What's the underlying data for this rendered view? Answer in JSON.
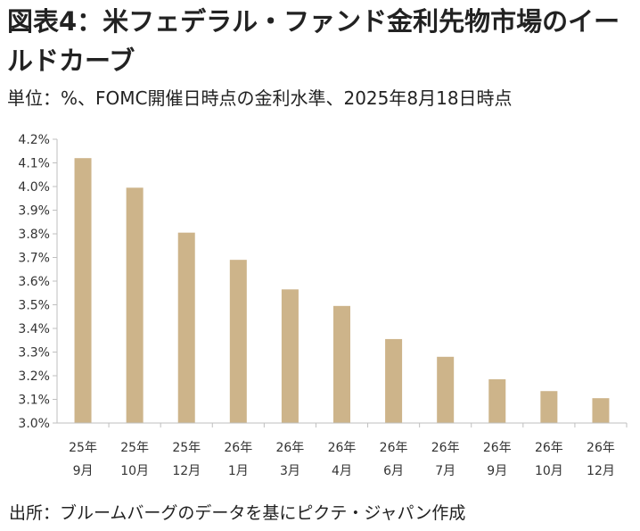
{
  "title": "図表4：米フェデラル・ファンド金利先物市場のイールドカーブ",
  "subtitle": "単位：%、FOMC開催日時点の金利水準、2025年8月18日時点",
  "source": "出所：ブルームバーグのデータを基にピクテ・ジャパン作成",
  "colors": {
    "bar": "#CDB48A",
    "axis": "#BFBFBF",
    "grid": "#D9D9D9"
  },
  "chart_data": {
    "type": "bar",
    "categories": [
      [
        "25年",
        "9月"
      ],
      [
        "25年",
        "10月"
      ],
      [
        "25年",
        "12月"
      ],
      [
        "26年",
        "1月"
      ],
      [
        "26年",
        "3月"
      ],
      [
        "26年",
        "4月"
      ],
      [
        "26年",
        "6月"
      ],
      [
        "26年",
        "7月"
      ],
      [
        "26年",
        "9月"
      ],
      [
        "26年",
        "10月"
      ],
      [
        "26年",
        "12月"
      ]
    ],
    "values": [
      4.12,
      3.995,
      3.805,
      3.69,
      3.565,
      3.495,
      3.355,
      3.28,
      3.185,
      3.135,
      3.105
    ],
    "ylim": [
      3.0,
      4.2
    ],
    "yticks": [
      "4.2%",
      "4.1%",
      "4.0%",
      "3.9%",
      "3.8%",
      "3.7%",
      "3.6%",
      "3.5%",
      "3.4%",
      "3.3%",
      "3.2%",
      "3.1%",
      "3.0%"
    ],
    "ytick_values": [
      4.2,
      4.1,
      4.0,
      3.9,
      3.8,
      3.7,
      3.6,
      3.5,
      3.4,
      3.3,
      3.2,
      3.1,
      3.0
    ],
    "grid": false,
    "legend": "none"
  }
}
